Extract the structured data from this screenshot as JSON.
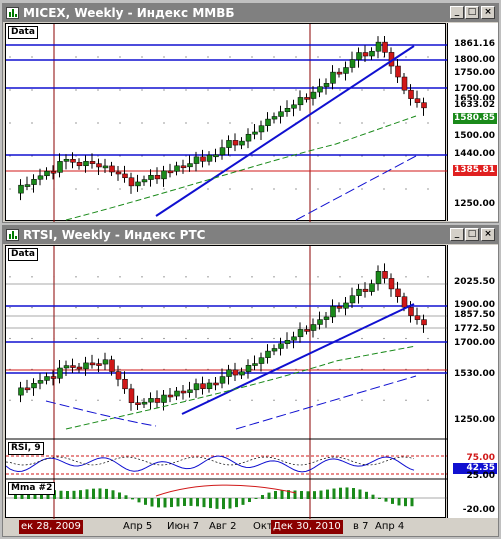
{
  "window1": {
    "title": "MICEX, Weekly - Индекс ММВБ",
    "pane_label": "Data",
    "ticks": [
      "1861.16",
      "1800.00",
      "1750.00",
      "1700.00",
      "1650.00",
      "1633.02",
      "1580.85",
      "1500.00",
      "1440.00",
      "1385.81",
      "1250.00"
    ],
    "tags": [
      {
        "text": "1861.16",
        "bg": "#ffffff",
        "fg": "#000000"
      },
      {
        "text": "1800.00",
        "bg": "#ffffff",
        "fg": "#000000"
      },
      {
        "text": "1700.00",
        "bg": "#ffffff",
        "fg": "#000000"
      },
      {
        "text": "1633.02",
        "bg": "#ffffff",
        "fg": "#000000"
      },
      {
        "text": "1580.85",
        "bg": "#1a8a1a",
        "fg": "#ffffff"
      },
      {
        "text": "1440.00",
        "bg": "#ffffff",
        "fg": "#000000"
      },
      {
        "text": "1385.81",
        "bg": "#e02020",
        "fg": "#ffffff"
      }
    ],
    "plain_ticks": [
      "1750.00",
      "1650.00",
      "1500.00",
      "1250.00"
    ]
  },
  "window2": {
    "title": "RTSI, Weekly - Индекс РТС",
    "pane_label": "Data",
    "tags": [
      {
        "text": "2025.50",
        "bg": "#ffffff",
        "fg": "#000000"
      },
      {
        "text": "1900.00",
        "bg": "#ffffff",
        "fg": "#000000"
      },
      {
        "text": "1857.50",
        "bg": "#ffffff",
        "fg": "#000000"
      },
      {
        "text": "1772.50",
        "bg": "#ffffff",
        "fg": "#000000"
      },
      {
        "text": "1700.00",
        "bg": "#ffffff",
        "fg": "#000000"
      },
      {
        "text": "1530.00",
        "bg": "#ffffff",
        "fg": "#000000"
      }
    ],
    "plain_ticks": [
      "1250.00"
    ],
    "rsi": {
      "label": "RSI, 9",
      "ticks": [
        "75.00",
        "42.35",
        "25.00"
      ]
    },
    "macd": {
      "label": "Mma #2",
      "ticks": [
        "-20.00"
      ]
    }
  },
  "dates": [
    "ек 28, 2009",
    "Апр 5",
    "Июн 7",
    "Авг 2",
    "Окт",
    "Дек 30, 2010",
    "в 7",
    "Апр 4"
  ],
  "colors": {
    "bull": "#1a8a1a",
    "bear": "#d01818",
    "trend": "#1010d0",
    "ma": "#1a8a1a",
    "red_ma": "#d01818"
  },
  "window_buttons": {
    "minimize": "_",
    "maximize": "□",
    "close": "×"
  }
}
